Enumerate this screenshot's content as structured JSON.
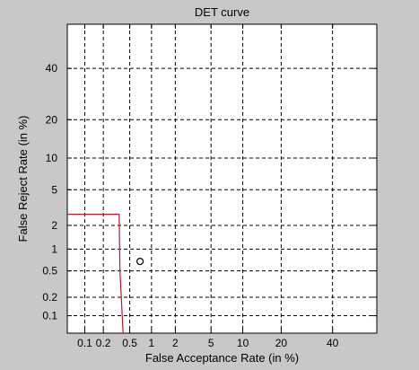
{
  "chart_data": {
    "type": "line",
    "title": "DET curve",
    "xlabel": "False Acceptance Rate (in %)",
    "ylabel": "False Reject Rate (in %)",
    "x_scale": "normal-deviate (probit)",
    "y_scale": "normal-deviate (probit)",
    "xlim": [
      0.05,
      60
    ],
    "ylim": [
      0.05,
      60
    ],
    "x_ticks": [
      0.1,
      0.2,
      0.5,
      1,
      2,
      5,
      10,
      20,
      40
    ],
    "x_tick_labels": [
      "0.1",
      "0.2",
      "0.5",
      "1",
      "2",
      "5",
      "10",
      "20",
      "40"
    ],
    "y_ticks": [
      0.1,
      0.2,
      0.5,
      1,
      2,
      5,
      10,
      20,
      40
    ],
    "y_tick_labels": [
      "0.1",
      "0.2",
      "0.5",
      "1",
      "2",
      "5",
      "10",
      "20",
      "40"
    ],
    "grid": true,
    "series": [
      {
        "color": "#b01c2e",
        "style": "line",
        "points": [
          [
            0.05,
            2.7
          ],
          [
            0.35,
            2.7
          ],
          [
            0.36,
            0.5
          ],
          [
            0.4,
            0.05
          ]
        ]
      },
      {
        "color": "#000000",
        "style": "circle-marker",
        "points": [
          [
            0.7,
            0.68
          ]
        ]
      }
    ]
  }
}
